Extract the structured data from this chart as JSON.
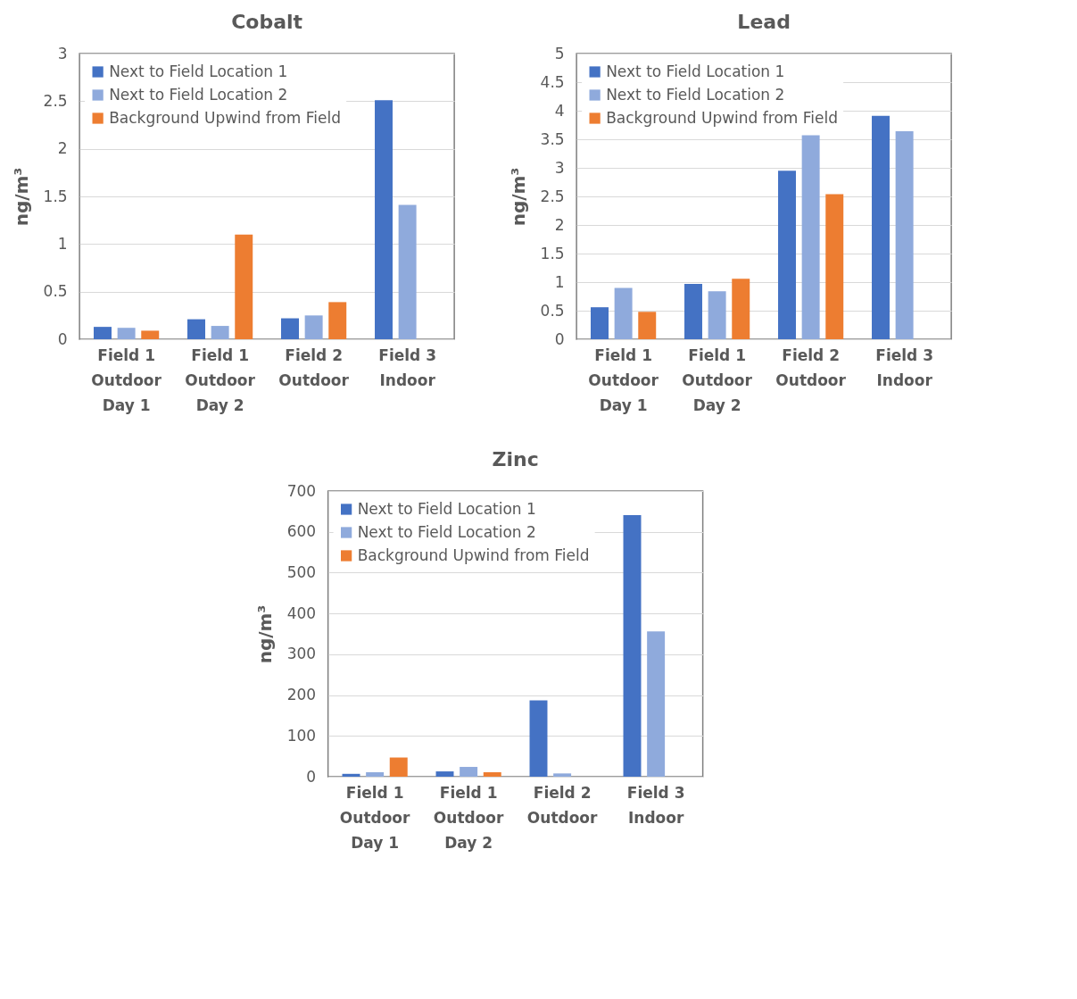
{
  "chart_data": [
    {
      "type": "bar",
      "title": "Cobalt",
      "ylabel": "ng/m³",
      "categories": [
        "Field 1\nOutdoor\nDay 1",
        "Field 1\nOutdoor\nDay 2",
        "Field 2\nOutdoor",
        "Field 3\nIndoor"
      ],
      "series": [
        {
          "name": "Next to Field Location 1",
          "color": "#4472c4",
          "values": [
            0.13,
            0.21,
            0.22,
            2.51
          ]
        },
        {
          "name": "Next to Field Location 2",
          "color": "#8faadc",
          "values": [
            0.12,
            0.14,
            0.25,
            1.41
          ]
        },
        {
          "name": "Background Upwind from Field",
          "color": "#ed7d31",
          "values": [
            0.09,
            1.1,
            0.39,
            null
          ]
        }
      ],
      "ylim": [
        0,
        3
      ],
      "yticks": [
        0,
        0.5,
        1,
        1.5,
        2,
        2.5,
        3
      ],
      "grid": "y",
      "legend": "top left"
    },
    {
      "type": "bar",
      "title": "Lead",
      "ylabel": "ng/m³",
      "categories": [
        "Field 1\nOutdoor\nDay 1",
        "Field 1\nOutdoor\nDay 2",
        "Field 2\nOutdoor",
        "Field 3\nIndoor"
      ],
      "series": [
        {
          "name": "Next to Field Location 1",
          "color": "#4472c4",
          "values": [
            0.56,
            0.97,
            2.95,
            3.91
          ]
        },
        {
          "name": "Next to Field Location 2",
          "color": "#8faadc",
          "values": [
            0.9,
            0.84,
            3.57,
            3.64
          ]
        },
        {
          "name": "Background Upwind from Field",
          "color": "#ed7d31",
          "values": [
            0.48,
            1.06,
            2.54,
            null
          ]
        }
      ],
      "ylim": [
        0,
        5
      ],
      "yticks": [
        0,
        0.5,
        1,
        1.5,
        2,
        2.5,
        3,
        3.5,
        4,
        4.5,
        5
      ],
      "grid": "y",
      "legend": "top left"
    },
    {
      "type": "bar",
      "title": "Zinc",
      "ylabel": "ng/m³",
      "categories": [
        "Field 1\nOutdoor\nDay 1",
        "Field 1\nOutdoor\nDay 2",
        "Field 2\nOutdoor",
        "Field 3\nIndoor"
      ],
      "series": [
        {
          "name": "Next to Field Location 1",
          "color": "#4472c4",
          "values": [
            7,
            13,
            187,
            641
          ]
        },
        {
          "name": "Next to Field Location 2",
          "color": "#8faadc",
          "values": [
            11,
            24,
            8,
            356
          ]
        },
        {
          "name": "Background Upwind from Field",
          "color": "#ed7d31",
          "values": [
            47,
            11,
            null,
            null
          ]
        }
      ],
      "ylim": [
        0,
        700
      ],
      "yticks": [
        0,
        100,
        200,
        300,
        400,
        500,
        600,
        700
      ],
      "grid": "y",
      "legend": "top left"
    }
  ]
}
